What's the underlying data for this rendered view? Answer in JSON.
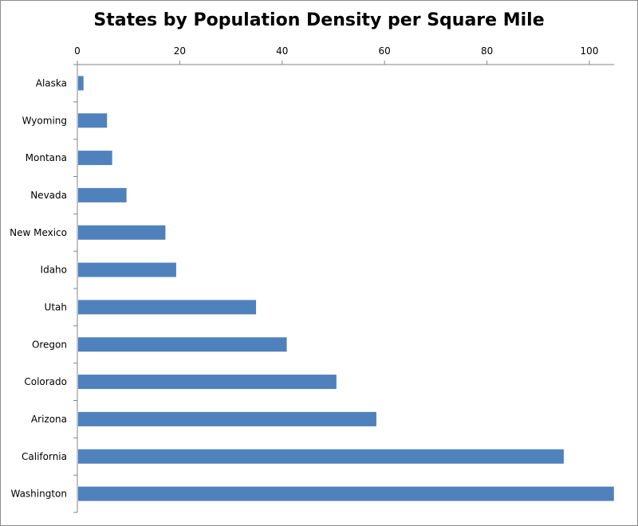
{
  "chart_data": {
    "type": "bar",
    "orientation": "horizontal",
    "title": "States by Population Density per Square Mile",
    "xlabel": "",
    "ylabel": "",
    "categories": [
      "Alaska",
      "Wyoming",
      "Montana",
      "Nevada",
      "New Mexico",
      "Idaho",
      "Utah",
      "Oregon",
      "Colorado",
      "Arizona",
      "California",
      "Washington"
    ],
    "values": [
      1.2,
      5.8,
      6.8,
      9.6,
      17.2,
      19.3,
      34.9,
      40.9,
      50.6,
      58.4,
      95.0,
      104.8
    ],
    "xlim": [
      0,
      105
    ],
    "xticks": [
      0,
      20,
      40,
      60,
      80,
      100
    ],
    "xaxis_position": "top",
    "grid": false,
    "legend": "none",
    "bar_color": "#4F81BD"
  }
}
